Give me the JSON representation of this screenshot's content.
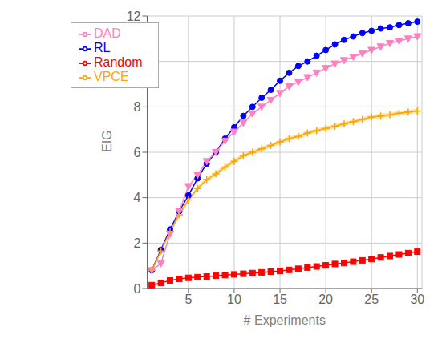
{
  "chart_data": {
    "type": "line",
    "xlabel": "# Experiments",
    "ylabel": "EIG",
    "x": [
      1,
      2,
      3,
      4,
      5,
      6,
      7,
      8,
      9,
      10,
      11,
      12,
      13,
      14,
      15,
      16,
      17,
      18,
      19,
      20,
      21,
      22,
      23,
      24,
      25,
      26,
      27,
      28,
      29,
      30
    ],
    "series": [
      {
        "name": "RL",
        "color": "#0000FF",
        "marker": "circle",
        "values": [
          0.8,
          1.7,
          2.6,
          3.4,
          4.1,
          4.85,
          5.5,
          6.0,
          6.6,
          7.1,
          7.6,
          8.0,
          8.4,
          8.75,
          9.15,
          9.5,
          9.8,
          10.0,
          10.25,
          10.5,
          10.75,
          10.95,
          11.1,
          11.25,
          11.35,
          11.45,
          11.5,
          11.6,
          11.68,
          11.75
        ]
      },
      {
        "name": "DAD",
        "color": "#FF80C0",
        "marker": "triangle-down",
        "values": [
          0.8,
          1.1,
          2.4,
          3.4,
          4.5,
          5.0,
          5.6,
          6.0,
          6.5,
          6.9,
          7.3,
          7.7,
          8.0,
          8.3,
          8.6,
          8.9,
          9.1,
          9.3,
          9.5,
          9.7,
          9.9,
          10.05,
          10.2,
          10.35,
          10.5,
          10.65,
          10.8,
          10.9,
          11.0,
          11.1
        ]
      },
      {
        "name": "VPCE",
        "color": "#FFA500",
        "marker": "plus",
        "values": [
          0.8,
          1.65,
          2.5,
          3.25,
          3.9,
          4.4,
          4.8,
          5.05,
          5.35,
          5.6,
          5.85,
          6.0,
          6.15,
          6.3,
          6.45,
          6.6,
          6.7,
          6.85,
          6.95,
          7.05,
          7.15,
          7.25,
          7.35,
          7.45,
          7.55,
          7.6,
          7.65,
          7.72,
          7.77,
          7.82
        ],
        "lower": [
          0.75,
          1.6,
          2.42,
          3.15,
          3.8,
          4.3,
          4.7,
          4.95,
          5.25,
          5.5,
          5.75,
          5.9,
          6.05,
          6.2,
          6.35,
          6.5,
          6.6,
          6.75,
          6.85,
          6.95,
          7.05,
          7.15,
          7.25,
          7.35,
          7.45,
          7.5,
          7.55,
          7.62,
          7.67,
          7.72
        ],
        "upper": [
          0.85,
          1.7,
          2.58,
          3.35,
          4.0,
          4.5,
          4.9,
          5.15,
          5.45,
          5.7,
          5.95,
          6.1,
          6.25,
          6.4,
          6.55,
          6.7,
          6.8,
          6.95,
          7.05,
          7.15,
          7.25,
          7.35,
          7.45,
          7.55,
          7.65,
          7.7,
          7.75,
          7.82,
          7.87,
          7.92
        ]
      },
      {
        "name": "Random",
        "color": "#FF0000",
        "marker": "square",
        "values": [
          0.15,
          0.25,
          0.35,
          0.42,
          0.47,
          0.5,
          0.53,
          0.56,
          0.59,
          0.62,
          0.65,
          0.68,
          0.71,
          0.74,
          0.77,
          0.82,
          0.87,
          0.92,
          0.97,
          1.02,
          1.08,
          1.12,
          1.18,
          1.24,
          1.3,
          1.37,
          1.43,
          1.5,
          1.56,
          1.62
        ]
      }
    ],
    "xlim": [
      0.5,
      30.5
    ],
    "xticks": [
      5,
      10,
      15,
      20,
      25,
      30
    ],
    "ylim": [
      0,
      12
    ],
    "yticks": [
      0,
      2,
      4,
      6,
      8,
      10,
      12
    ],
    "grid": true,
    "legend": "upper left"
  }
}
